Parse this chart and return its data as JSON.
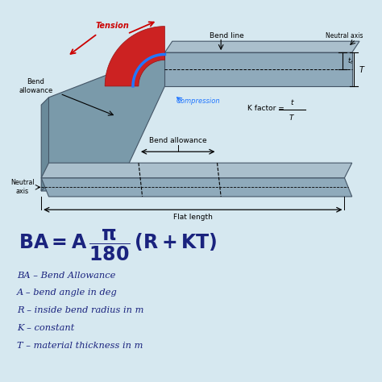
{
  "bg_color": "#d6e8f0",
  "formula_color": "#1a237e",
  "red_color": "#cc0000",
  "blue_color": "#3399ff",
  "black": "#000000",
  "legend_lines": [
    "BA – Bend Allowance",
    "A – bend angle in deg",
    "R – inside bend radius in m",
    "K – constant",
    "T – material thickness in m"
  ],
  "labels": {
    "tension": "Tension",
    "compression": "Compression",
    "bend_line": "Bend line",
    "neutral_axis_top": "Neutral axis",
    "bend_allowance_top": "Bend\nallowance",
    "k_factor": "K factor = ",
    "bend_allowance_bottom": "Bend allowance",
    "neutral_axis_bottom": "Neutral\naxis",
    "flat_length": "Flat length"
  }
}
